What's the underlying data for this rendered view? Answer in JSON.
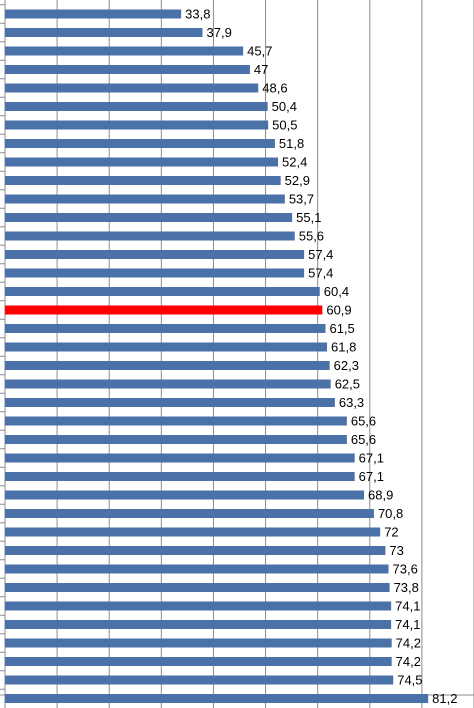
{
  "chart_data": {
    "type": "hbar",
    "values": [
      33.8,
      37.9,
      45.7,
      47,
      48.6,
      50.4,
      50.5,
      51.8,
      52.4,
      52.9,
      53.7,
      55.1,
      55.6,
      57.4,
      57.4,
      60.4,
      60.9,
      61.5,
      61.8,
      62.3,
      62.5,
      63.3,
      65.6,
      65.6,
      67.1,
      67.1,
      68.9,
      70.8,
      72,
      73,
      73.6,
      73.8,
      74.1,
      74.1,
      74.2,
      74.2,
      74.5,
      81.2
    ],
    "value_labels": [
      "33,8",
      "37,9",
      "45,7",
      "47",
      "48,6",
      "50,4",
      "50,5",
      "51,8",
      "52,4",
      "52,9",
      "53,7",
      "55,1",
      "55,6",
      "57,4",
      "57,4",
      "60,4",
      "60,9",
      "61,5",
      "61,8",
      "62,3",
      "62,5",
      "63,3",
      "65,6",
      "65,6",
      "67,1",
      "67,1",
      "68,9",
      "70,8",
      "72",
      "73",
      "73,6",
      "73,8",
      "74,1",
      "74,1",
      "74,2",
      "74,2",
      "74,5",
      "81,2"
    ],
    "colors": [
      "#4a72a8",
      "#4a72a8",
      "#4a72a8",
      "#4a72a8",
      "#4a72a8",
      "#4a72a8",
      "#4a72a8",
      "#4a72a8",
      "#4a72a8",
      "#4a72a8",
      "#4a72a8",
      "#4a72a8",
      "#4a72a8",
      "#4a72a8",
      "#4a72a8",
      "#4a72a8",
      "#ff0000",
      "#4a72a8",
      "#4a72a8",
      "#4a72a8",
      "#4a72a8",
      "#4a72a8",
      "#4a72a8",
      "#4a72a8",
      "#4a72a8",
      "#4a72a8",
      "#4a72a8",
      "#4a72a8",
      "#4a72a8",
      "#4a72a8",
      "#4a72a8",
      "#4a72a8",
      "#4a72a8",
      "#4a72a8",
      "#4a72a8",
      "#4a72a8",
      "#4a72a8",
      "#4a72a8"
    ],
    "xlim": [
      0,
      90
    ],
    "xticks": [
      0,
      10,
      20,
      30,
      40,
      50,
      60,
      70,
      80,
      90
    ],
    "grid": true
  }
}
